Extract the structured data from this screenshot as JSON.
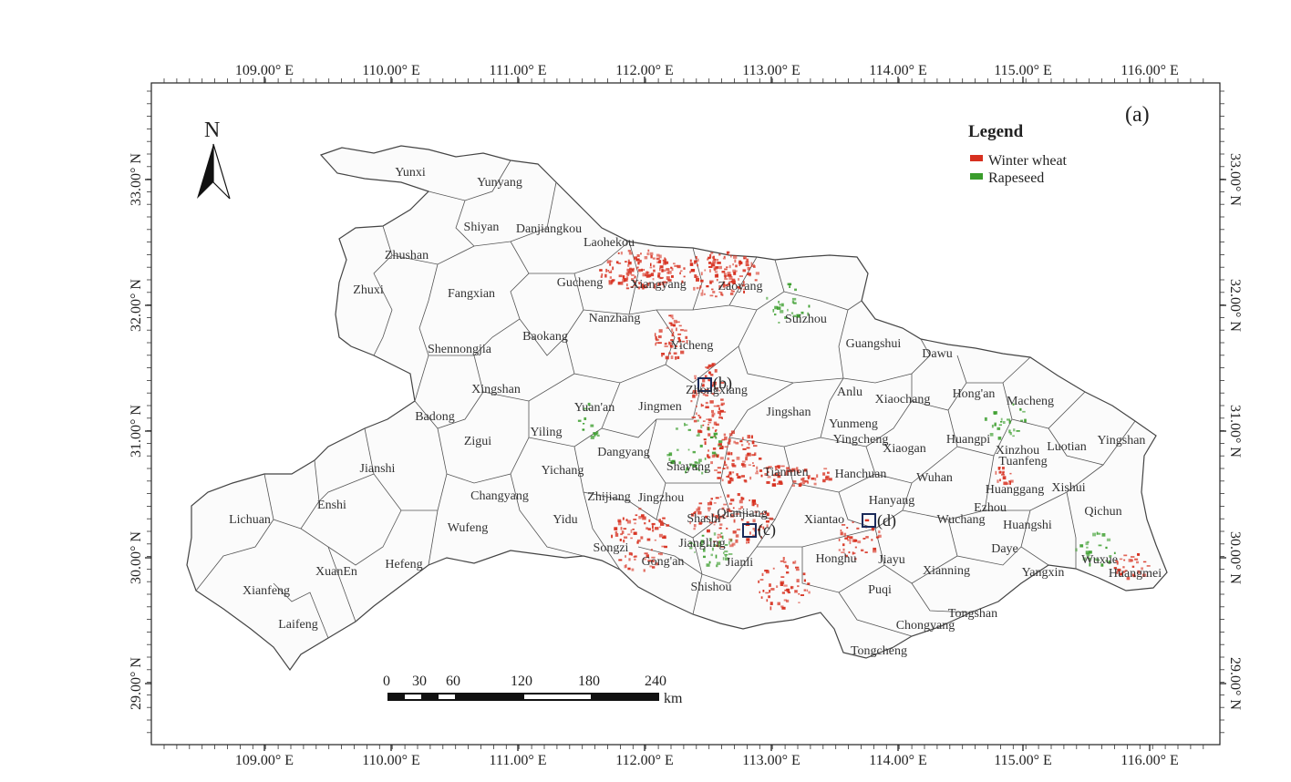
{
  "panel_label": "(a)",
  "north_label": "N",
  "legend": {
    "title": "Legend",
    "items": [
      {
        "label": "Winter wheat",
        "color": "#d7301f"
      },
      {
        "label": "Rapeseed",
        "color": "#3a9d2c"
      }
    ]
  },
  "axes": {
    "lon_ticks": [
      "109.00° E",
      "110.00° E",
      "111.00° E",
      "112.00° E",
      "113.00° E",
      "114.00° E",
      "115.00° E",
      "116.00° E"
    ],
    "lat_ticks": [
      "33.00° N",
      "32.00° N",
      "31.00° N",
      "30.00° N",
      "29.00° N"
    ]
  },
  "scale_bar": {
    "labels": [
      "0",
      "30",
      "60",
      "120",
      "180",
      "240"
    ],
    "unit": "km"
  },
  "insets": [
    "(b)",
    "(c)",
    "(d)"
  ],
  "counties": [
    "Yunxi",
    "Yunyang",
    "Shiyan",
    "Danjiangkou",
    "Zhushan",
    "Zhuxi",
    "Fangxian",
    "Laohekou",
    "Gucheng",
    "Xiangyang",
    "Zaoyang",
    "Suizhou",
    "Guangshui",
    "Dawu",
    "Shennongjia",
    "Baokang",
    "Nanzhang",
    "Yicheng",
    "Zhongxiang",
    "Xingshan",
    "Badong",
    "Zigui",
    "Yuan'an",
    "Jingmen",
    "Jingshan",
    "Anlu",
    "Xiaochang",
    "Hong'an",
    "Macheng",
    "Yiling",
    "Dangyang",
    "Yunmeng",
    "Yingcheng",
    "Xiaogan",
    "Huangpi",
    "Xinzhou",
    "Luotian",
    "Yingshan",
    "Jianshi",
    "Yichang",
    "Shayang",
    "Tianmen",
    "Hanchuan",
    "Wuhan",
    "Tuanfeng",
    "Changyang",
    "Zhijiang",
    "Jingzhou",
    "Huanggang",
    "Xishui",
    "Lichuan",
    "Enshi",
    "Shashi",
    "Qianjiang",
    "Xiantao",
    "Hanyang",
    "Wuchang",
    "Ezhou",
    "Huangshi",
    "Qichun",
    "Yidu",
    "Wufeng",
    "Songzi",
    "Jiangling",
    "Gong'an",
    "Jianli",
    "Honghu",
    "Jiayu",
    "Daye",
    "Wuxue",
    "Huangmei",
    "XuanEn",
    "Hefeng",
    "Xianfeng",
    "Shishou",
    "Xianning",
    "Yangxin",
    "Puqi",
    "Laifeng",
    "Tongshan",
    "Chongyang",
    "Tongcheng"
  ]
}
